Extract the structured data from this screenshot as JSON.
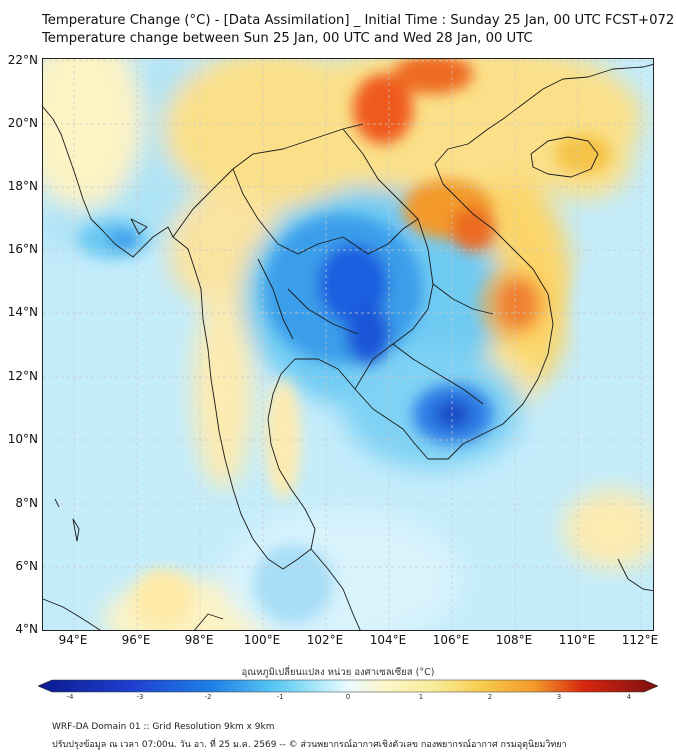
{
  "header": {
    "title_line1": "Temperature Change (°C) - [Data Assimilation] _ Initial Time : Sunday 25 Jan, 00 UTC FCST+072",
    "title_line2": "Temperature change between Sun 25 Jan, 00 UTC and Wed 28 Jan, 00 UTC"
  },
  "map": {
    "lon_ticks": [
      "94°E",
      "96°E",
      "98°E",
      "100°E",
      "102°E",
      "104°E",
      "106°E",
      "108°E",
      "110°E",
      "112°E"
    ],
    "lat_ticks": [
      "22°N",
      "20°N",
      "18°N",
      "16°N",
      "14°N",
      "12°N",
      "10°N",
      "8°N",
      "6°N",
      "4°N"
    ],
    "extent": {
      "lon_min": 93,
      "lon_max": 112.5,
      "lat_min": 4,
      "lat_max": 22.2
    }
  },
  "colorbar": {
    "title": "อุณหภูมิเปลี่ยนแปลง หน่วย องศาเซลเซียส (°C)",
    "labels": [
      "-4",
      "-3",
      "-2",
      "-1",
      "0",
      "1",
      "2",
      "3",
      "4"
    ],
    "min": -4,
    "max": 4,
    "colors": {
      "neg_strong": "#0a1a8c",
      "neg_mid": "#1f5fe0",
      "neg_light": "#57c6f2",
      "neutral": "#eafaff",
      "pos_light": "#f8ec9a",
      "pos_mid": "#f39a2a",
      "pos_strong": "#d7260f",
      "pos_max": "#7a1010"
    }
  },
  "footer": {
    "line1": "WRF-DA Domain 01 :: Grid Resolution 9km x 9km",
    "line2": "ปรับปรุงข้อมูล ณ เวลา 07:00น. วัน อา. ที่ 25 ม.ค. 2569 -- © ส่วนพยากรณ์อากาศเชิงตัวเลข กองพยากรณ์อากาศ กรมอุตุนิยมวิทยา"
  }
}
